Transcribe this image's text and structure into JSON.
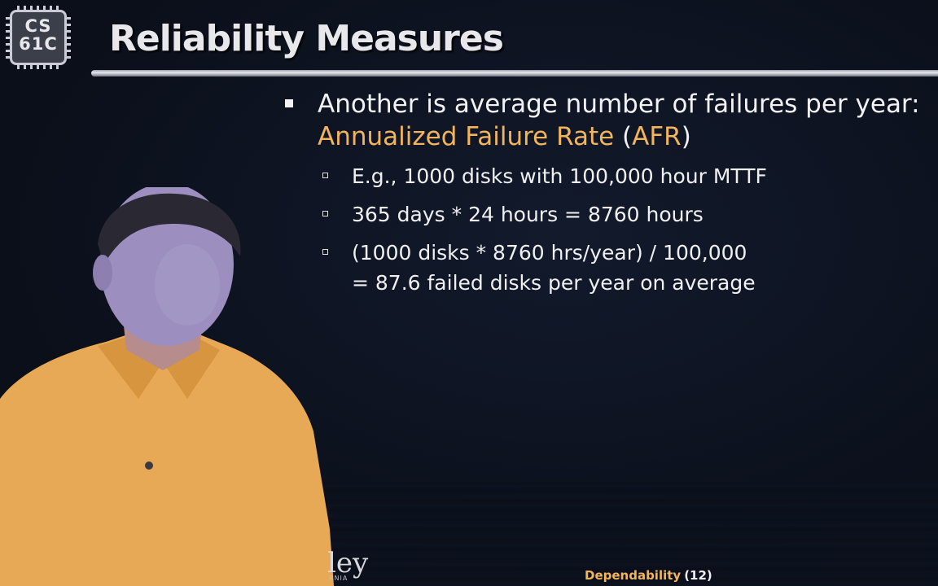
{
  "logo": {
    "line1": "CS",
    "line2": "61C"
  },
  "slide": {
    "title": "Reliability Measures",
    "bullet": {
      "text_before": "Another is average number of failures per year: ",
      "highlight": "Annualized Failure Rate",
      "paren_open": " (",
      "acronym": "AFR",
      "paren_close": ")"
    },
    "sub_bullets": [
      "E.g., 1000 disks with 100,000 hour MTTF",
      "365 days * 24 hours = 8760 hours"
    ],
    "calc": {
      "line1": "(1000 disks * 8760 hrs/year) / 100,000",
      "line2": "= 87.6 failed disks per year on average"
    }
  },
  "footer": {
    "topic": "Dependability",
    "page": "(12)"
  },
  "watermark": {
    "partial": "ley",
    "partial_sub": "RNIA"
  },
  "colors": {
    "accent": "#f2b45c",
    "background": "#0b0f1a",
    "text": "#f0f0f0"
  }
}
